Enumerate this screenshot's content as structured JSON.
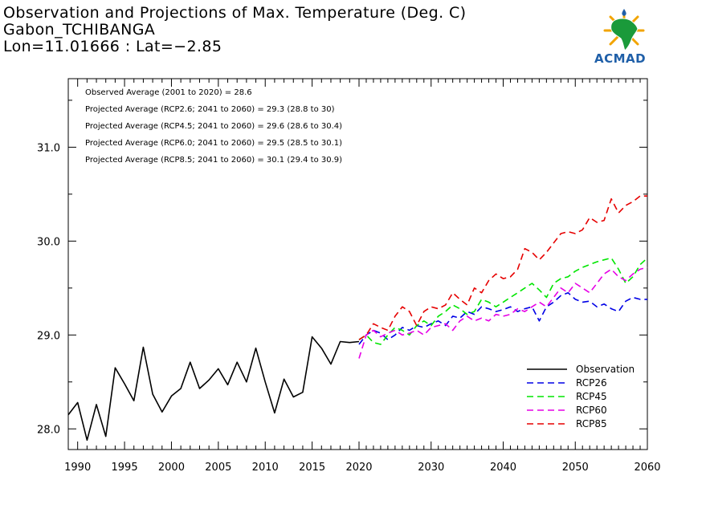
{
  "header": {
    "title_line1": "Observation and Projections of Max. Temperature (Deg. C)",
    "title_line2": "Gabon_TCHIBANGA",
    "title_line3": "Lon=11.01666 : Lat=−2.85"
  },
  "logo": {
    "text": "ACMAD",
    "color": "#1f5fa8",
    "accent": "#f2a400"
  },
  "chart_data": {
    "type": "line",
    "title": "Observation and Projections of Max. Temperature (Deg. C)",
    "xlabel": "",
    "ylabel": "",
    "xlim": [
      1989,
      2060
    ],
    "ylim": [
      27.78,
      31.73
    ],
    "x_segments": [
      {
        "from": 1989,
        "to": 2020
      },
      {
        "from": 2020,
        "to": 2060
      }
    ],
    "x_ticks_major": [
      1990,
      1995,
      2000,
      2005,
      2010,
      2015,
      2020,
      2030,
      2040,
      2050,
      2060
    ],
    "y_ticks": [
      "28.0",
      "29.0",
      "30.0",
      "31.0"
    ],
    "y_tick_values": [
      28.0,
      29.0,
      30.0,
      31.0
    ],
    "annotations": [
      "Observed Average (2001 to 2020) = 28.6",
      "Projected Average (RCP2.6; 2041 to 2060) = 29.3 (28.8 to 30)",
      "Projected Average (RCP4.5; 2041 to 2060) = 29.6 (28.6 to 30.4)",
      "Projected Average (RCP6.0; 2041 to 2060) = 29.5 (28.5 to 30.1)",
      "Projected Average (RCP8.5; 2041 to 2060) = 30.1 (29.4 to 30.9)"
    ],
    "legend_position": "bottom-right",
    "series": [
      {
        "name": "Observation",
        "color": "#000000",
        "dash": false,
        "x": [
          1989,
          1990,
          1991,
          1992,
          1993,
          1994,
          1995,
          1996,
          1997,
          1998,
          1999,
          2000,
          2001,
          2002,
          2003,
          2004,
          2005,
          2006,
          2007,
          2008,
          2009,
          2010,
          2011,
          2012,
          2013,
          2014,
          2015,
          2016,
          2017,
          2018,
          2019,
          2020
        ],
        "values": [
          28.15,
          28.28,
          27.88,
          28.26,
          27.92,
          28.65,
          28.48,
          28.3,
          28.87,
          28.37,
          28.18,
          28.35,
          28.43,
          28.71,
          28.43,
          28.52,
          28.64,
          28.47,
          28.71,
          28.5,
          28.86,
          28.5,
          28.17,
          28.53,
          28.34,
          28.39,
          28.98,
          28.86,
          28.69,
          28.93,
          28.92,
          28.93
        ]
      },
      {
        "name": "RCP26",
        "color": "#0000e6",
        "dash": true,
        "x": [
          2020,
          2021,
          2022,
          2023,
          2024,
          2025,
          2026,
          2027,
          2028,
          2029,
          2030,
          2031,
          2032,
          2033,
          2034,
          2035,
          2036,
          2037,
          2038,
          2039,
          2040,
          2041,
          2042,
          2043,
          2044,
          2045,
          2046,
          2047,
          2048,
          2049,
          2050,
          2051,
          2052,
          2053,
          2054,
          2055,
          2056,
          2057,
          2058,
          2059,
          2060
        ],
        "values": [
          28.9,
          29.0,
          29.05,
          29.02,
          28.95,
          29.0,
          29.08,
          29.05,
          29.1,
          29.08,
          29.12,
          29.15,
          29.1,
          29.2,
          29.18,
          29.25,
          29.22,
          29.3,
          29.28,
          29.25,
          29.27,
          29.3,
          29.25,
          29.28,
          29.3,
          29.15,
          29.3,
          29.35,
          29.42,
          29.45,
          29.38,
          29.35,
          29.36,
          29.3,
          29.33,
          29.28,
          29.25,
          29.36,
          29.4,
          29.38,
          29.38
        ]
      },
      {
        "name": "RCP45",
        "color": "#00e600",
        "dash": true,
        "x": [
          2020,
          2021,
          2022,
          2023,
          2024,
          2025,
          2026,
          2027,
          2028,
          2029,
          2030,
          2031,
          2032,
          2033,
          2034,
          2035,
          2036,
          2037,
          2038,
          2039,
          2040,
          2041,
          2042,
          2043,
          2044,
          2045,
          2046,
          2047,
          2048,
          2049,
          2050,
          2051,
          2052,
          2053,
          2054,
          2055,
          2056,
          2057,
          2058,
          2059,
          2060
        ],
        "values": [
          28.95,
          29.0,
          28.92,
          28.9,
          29.0,
          29.08,
          29.05,
          29.0,
          29.1,
          29.15,
          29.1,
          29.2,
          29.25,
          29.32,
          29.28,
          29.22,
          29.25,
          29.38,
          29.35,
          29.3,
          29.35,
          29.4,
          29.45,
          29.5,
          29.55,
          29.48,
          29.4,
          29.55,
          29.6,
          29.62,
          29.68,
          29.72,
          29.75,
          29.78,
          29.8,
          29.82,
          29.7,
          29.55,
          29.62,
          29.75,
          29.82
        ]
      },
      {
        "name": "RCP60",
        "color": "#e600e6",
        "dash": true,
        "x": [
          2020,
          2021,
          2022,
          2023,
          2024,
          2025,
          2026,
          2027,
          2028,
          2029,
          2030,
          2031,
          2032,
          2033,
          2034,
          2035,
          2036,
          2037,
          2038,
          2039,
          2040,
          2041,
          2042,
          2043,
          2044,
          2045,
          2046,
          2047,
          2048,
          2049,
          2050,
          2051,
          2052,
          2053,
          2054,
          2055,
          2056,
          2057,
          2058,
          2059,
          2060
        ],
        "values": [
          28.75,
          29.0,
          29.05,
          28.98,
          29.02,
          29.05,
          29.0,
          29.02,
          29.05,
          29.0,
          29.08,
          29.1,
          29.12,
          29.05,
          29.15,
          29.2,
          29.15,
          29.18,
          29.15,
          29.22,
          29.2,
          29.22,
          29.28,
          29.25,
          29.3,
          29.35,
          29.3,
          29.4,
          29.5,
          29.45,
          29.55,
          29.5,
          29.45,
          29.55,
          29.65,
          29.7,
          29.62,
          29.58,
          29.65,
          29.7,
          29.72
        ]
      },
      {
        "name": "RCP85",
        "color": "#e60000",
        "dash": true,
        "x": [
          2020,
          2021,
          2022,
          2023,
          2024,
          2025,
          2026,
          2027,
          2028,
          2029,
          2030,
          2031,
          2032,
          2033,
          2034,
          2035,
          2036,
          2037,
          2038,
          2039,
          2040,
          2041,
          2042,
          2043,
          2044,
          2045,
          2046,
          2047,
          2048,
          2049,
          2050,
          2051,
          2052,
          2053,
          2054,
          2055,
          2056,
          2057,
          2058,
          2059,
          2060
        ],
        "values": [
          28.95,
          29.0,
          29.12,
          29.08,
          29.05,
          29.2,
          29.3,
          29.25,
          29.1,
          29.25,
          29.3,
          29.28,
          29.32,
          29.45,
          29.38,
          29.32,
          29.5,
          29.45,
          29.58,
          29.65,
          29.6,
          29.62,
          29.7,
          29.92,
          29.88,
          29.8,
          29.88,
          29.98,
          30.08,
          30.1,
          30.08,
          30.12,
          30.25,
          30.2,
          30.22,
          30.45,
          30.3,
          30.38,
          30.42,
          30.48,
          30.48
        ]
      }
    ]
  }
}
